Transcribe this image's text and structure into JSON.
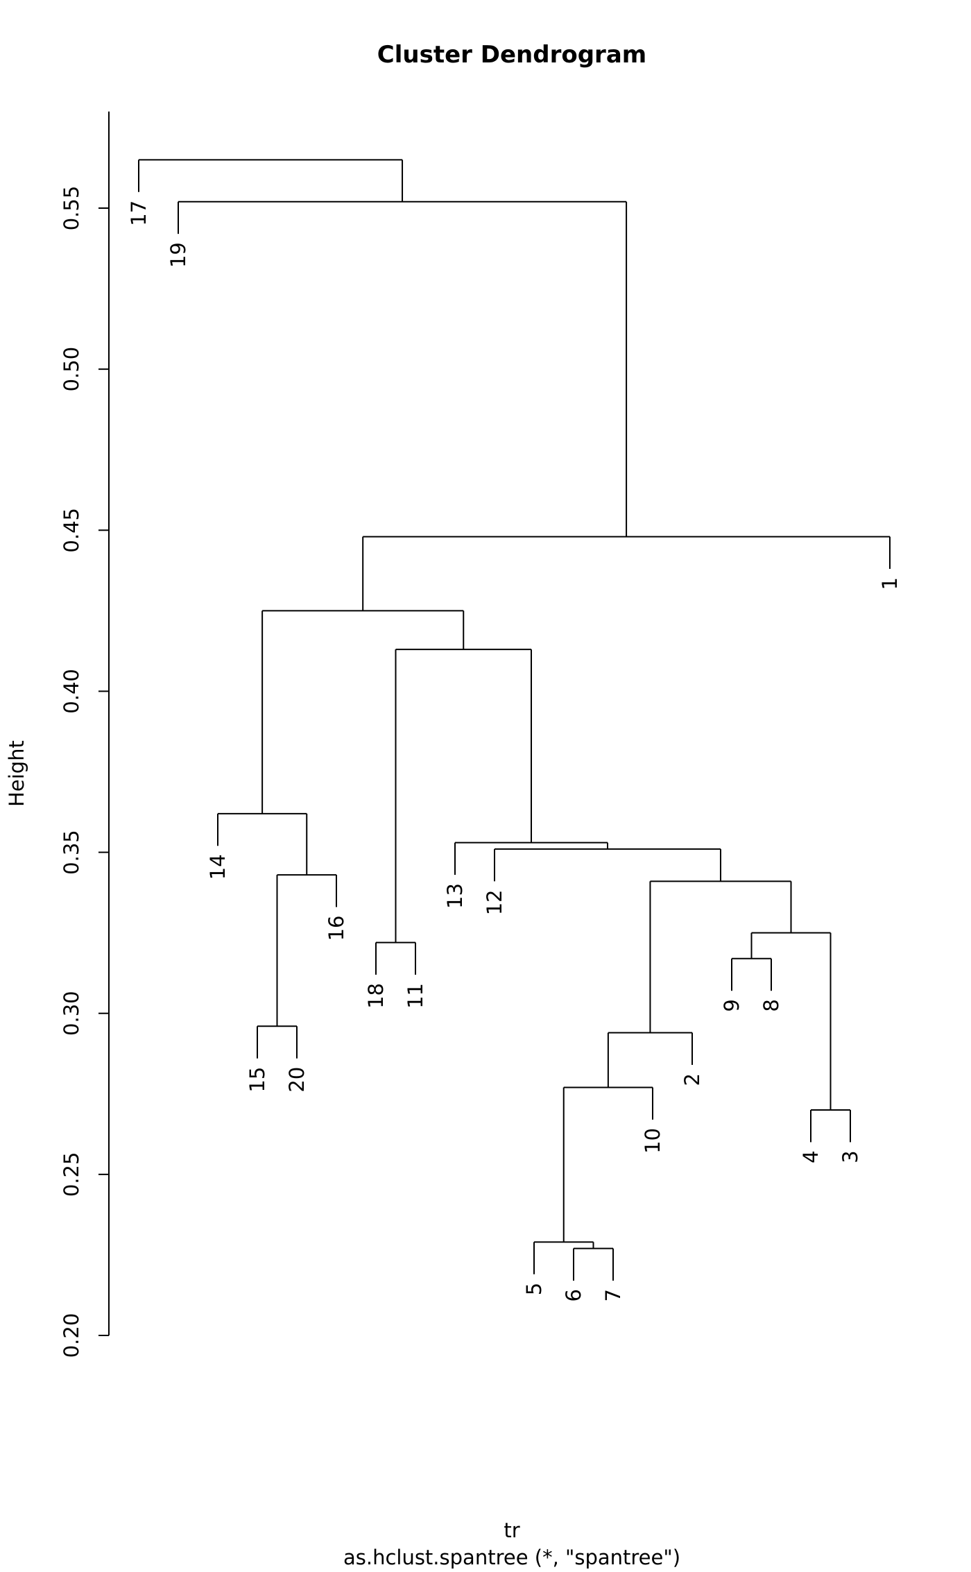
{
  "chart_data": {
    "type": "dendrogram",
    "title": "Cluster Dendrogram",
    "ylabel": "Height",
    "xlabel": "tr",
    "subtitle": "as.hclust.spantree (*, \"spantree\")",
    "ylim": [
      0.2,
      0.58
    ],
    "yticks": [
      0.2,
      0.25,
      0.3,
      0.35,
      0.4,
      0.45,
      0.5,
      0.55
    ],
    "ytick_labels": [
      "0.20",
      "0.25",
      "0.30",
      "0.35",
      "0.40",
      "0.45",
      "0.50",
      "0.55"
    ],
    "leaf_order": [
      "17",
      "19",
      "14",
      "15",
      "20",
      "16",
      "18",
      "11",
      "13",
      "12",
      "5",
      "6",
      "7",
      "10",
      "2",
      "9",
      "8",
      "4",
      "3",
      "1"
    ],
    "merges": [
      {
        "id": "m1",
        "left": "6",
        "right": "7",
        "height": 0.227
      },
      {
        "id": "m2",
        "left": "5",
        "right": "m1",
        "height": 0.229
      },
      {
        "id": "m3",
        "left": "4",
        "right": "3",
        "height": 0.27
      },
      {
        "id": "m4",
        "left": "m2",
        "right": "10",
        "height": 0.277
      },
      {
        "id": "m5",
        "left": "m4",
        "right": "2",
        "height": 0.294
      },
      {
        "id": "m6",
        "left": "15",
        "right": "20",
        "height": 0.296
      },
      {
        "id": "m7",
        "left": "9",
        "right": "8",
        "height": 0.317
      },
      {
        "id": "m8",
        "left": "18",
        "right": "11",
        "height": 0.322
      },
      {
        "id": "m9",
        "left": "m7",
        "right": "m3",
        "height": 0.325
      },
      {
        "id": "m10",
        "left": "m5",
        "right": "m9",
        "height": 0.341
      },
      {
        "id": "m11",
        "left": "m6",
        "right": "16",
        "height": 0.343
      },
      {
        "id": "m12",
        "left": "12",
        "right": "m10",
        "height": 0.351
      },
      {
        "id": "m13",
        "left": "13",
        "right": "m12",
        "height": 0.353
      },
      {
        "id": "m14",
        "left": "14",
        "right": "m11",
        "height": 0.362
      },
      {
        "id": "m15",
        "left": "m8",
        "right": "m13",
        "height": 0.413
      },
      {
        "id": "m16",
        "left": "m14",
        "right": "m15",
        "height": 0.425
      },
      {
        "id": "m17",
        "left": "m16",
        "right": "1",
        "height": 0.448
      },
      {
        "id": "m18",
        "left": "19",
        "right": "m17",
        "height": 0.552
      },
      {
        "id": "m19",
        "left": "17",
        "right": "m18",
        "height": 0.565
      }
    ]
  }
}
